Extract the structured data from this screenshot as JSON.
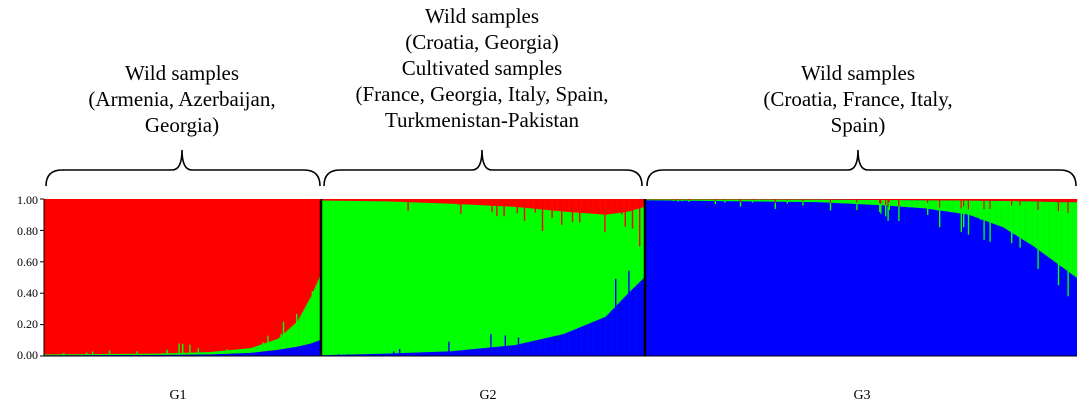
{
  "chart_data": {
    "type": "bar",
    "stacked": true,
    "title": "",
    "xlabel": "",
    "ylabel": "",
    "ylim": [
      0,
      1
    ],
    "y_ticks": [
      "0.00",
      "0.20",
      "0.40",
      "0.60",
      "0.80",
      "1.00"
    ],
    "grid": false,
    "legend": "none",
    "series_colors": {
      "red": "#ff0000",
      "green": "#00ff00",
      "blue": "#0000ff"
    },
    "groups": [
      {
        "name": "G1",
        "description_lines": [
          "Wild samples",
          "(Armenia, Azerbaijan,",
          "Georgia)"
        ],
        "dominant": "red",
        "profile": [
          {
            "pos": 0.0,
            "red": 0.99,
            "green": 0.005,
            "blue": 0.005
          },
          {
            "pos": 0.4,
            "red": 0.985,
            "green": 0.008,
            "blue": 0.007
          },
          {
            "pos": 0.6,
            "red": 0.975,
            "green": 0.015,
            "blue": 0.01
          },
          {
            "pos": 0.75,
            "red": 0.95,
            "green": 0.03,
            "blue": 0.02
          },
          {
            "pos": 0.85,
            "red": 0.89,
            "green": 0.07,
            "blue": 0.04
          },
          {
            "pos": 0.92,
            "red": 0.78,
            "green": 0.16,
            "blue": 0.06
          },
          {
            "pos": 0.97,
            "red": 0.62,
            "green": 0.3,
            "blue": 0.08
          },
          {
            "pos": 1.0,
            "red": 0.5,
            "green": 0.4,
            "blue": 0.1
          }
        ]
      },
      {
        "name": "G2",
        "description_lines": [
          "Wild samples",
          "(Croatia, Georgia)",
          "Cultivated samples",
          "(France, Georgia, Italy, Spain,",
          "Turkmenistan-Pakistan"
        ],
        "dominant": "green",
        "profile": [
          {
            "pos": 0.0,
            "red": 0.01,
            "green": 0.985,
            "blue": 0.005
          },
          {
            "pos": 0.2,
            "red": 0.015,
            "green": 0.97,
            "blue": 0.015
          },
          {
            "pos": 0.4,
            "red": 0.03,
            "green": 0.94,
            "blue": 0.03
          },
          {
            "pos": 0.6,
            "red": 0.05,
            "green": 0.88,
            "blue": 0.07
          },
          {
            "pos": 0.75,
            "red": 0.08,
            "green": 0.78,
            "blue": 0.14
          },
          {
            "pos": 0.88,
            "red": 0.1,
            "green": 0.65,
            "blue": 0.25
          },
          {
            "pos": 0.95,
            "red": 0.08,
            "green": 0.52,
            "blue": 0.4
          },
          {
            "pos": 1.0,
            "red": 0.05,
            "green": 0.45,
            "blue": 0.5
          }
        ]
      },
      {
        "name": "G3",
        "description_lines": [
          "Wild samples",
          "(Croatia, France, Italy,",
          "Spain)"
        ],
        "dominant": "blue",
        "profile": [
          {
            "pos": 0.0,
            "red": 0.003,
            "green": 0.005,
            "blue": 0.992
          },
          {
            "pos": 0.4,
            "red": 0.004,
            "green": 0.016,
            "blue": 0.98
          },
          {
            "pos": 0.55,
            "red": 0.006,
            "green": 0.034,
            "blue": 0.96
          },
          {
            "pos": 0.65,
            "red": 0.008,
            "green": 0.052,
            "blue": 0.94
          },
          {
            "pos": 0.75,
            "red": 0.01,
            "green": 0.09,
            "blue": 0.9
          },
          {
            "pos": 0.83,
            "red": 0.012,
            "green": 0.168,
            "blue": 0.82
          },
          {
            "pos": 0.9,
            "red": 0.015,
            "green": 0.285,
            "blue": 0.7
          },
          {
            "pos": 0.96,
            "red": 0.02,
            "green": 0.4,
            "blue": 0.58
          },
          {
            "pos": 1.0,
            "red": 0.02,
            "green": 0.48,
            "blue": 0.5
          }
        ]
      }
    ]
  }
}
